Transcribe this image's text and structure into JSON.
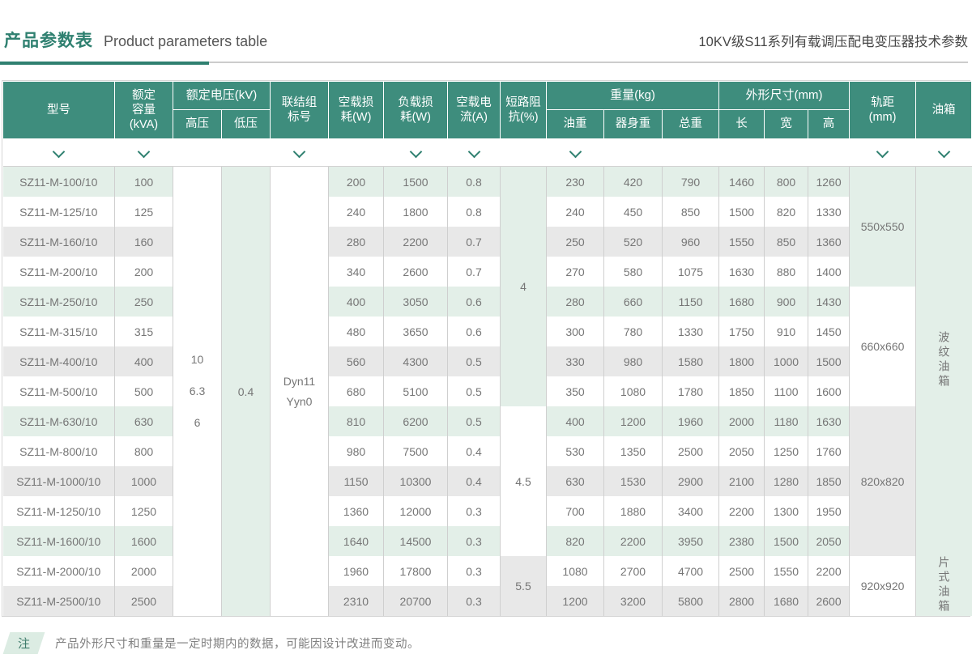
{
  "page": {
    "title_zh": "产品参数表",
    "title_en": "Product parameters table",
    "subtitle": "10KV级S11系列有载调压配电变压器技术参数",
    "note_label": "注",
    "note_text": "产品外形尺寸和重量是一定时期内的数据，可能因设计改进而变动。"
  },
  "colors": {
    "header_bg": "#3e8d7d",
    "accent": "#2f8070",
    "row_green": "#e3efe8",
    "row_gray": "#e8e8e8"
  },
  "icons": {
    "chevron_down": "chevron-down-icon"
  },
  "table": {
    "headers": {
      "model": "型号",
      "capacity": "额定\n容量\n(kVA)",
      "voltage_group": "额定电压(kV)",
      "hv": "高压",
      "lv": "低压",
      "vector": "联结组\n标号",
      "no_load_loss": "空载损\n耗(W)",
      "load_loss": "负载损\n耗(W)",
      "no_load_current": "空载电\n流(A)",
      "impedance": "短路阻\n抗(%)",
      "weight_group": "重量(kg)",
      "oil_weight": "油重",
      "body_weight": "器身重",
      "total_weight": "总重",
      "dim_group": "外形尺寸(mm)",
      "length": "长",
      "width": "宽",
      "height": "高",
      "gauge": "轨距\n(mm)",
      "tank": "油箱"
    },
    "chevron_columns": [
      0,
      1,
      4,
      6,
      7,
      9,
      15,
      16
    ],
    "merged": {
      "hv_values": "10\n6.3\n6",
      "lv_value": "0.4",
      "vector_values": "Dyn11\nYyn0",
      "impedance_groups": [
        {
          "value": "4",
          "rows": 8,
          "style": "green"
        },
        {
          "value": "4.5",
          "rows": 5,
          "style": "white"
        },
        {
          "value": "5.5",
          "rows": 2,
          "style": "gray"
        }
      ],
      "gauge_groups": [
        {
          "value": "550x550",
          "rows": 4,
          "style": "green"
        },
        {
          "value": "660x660",
          "rows": 4,
          "style": "white"
        },
        {
          "value": "820x820",
          "rows": 5,
          "style": "gray"
        },
        {
          "value": "920x920",
          "rows": 2,
          "style": "white"
        }
      ],
      "tank_groups": [
        {
          "value": "波纹油箱",
          "rows": 13
        },
        {
          "value": "片式油箱",
          "rows": 2
        }
      ]
    },
    "rows": [
      {
        "model": "SZ11-M-100/10",
        "kva": "100",
        "no_load_loss": "200",
        "load_loss": "1500",
        "current": "0.8",
        "oil": "230",
        "body": "420",
        "total": "790",
        "l": "1460",
        "w": "800",
        "h": "1260"
      },
      {
        "model": "SZ11-M-125/10",
        "kva": "125",
        "no_load_loss": "240",
        "load_loss": "1800",
        "current": "0.8",
        "oil": "240",
        "body": "450",
        "total": "850",
        "l": "1500",
        "w": "820",
        "h": "1330"
      },
      {
        "model": "SZ11-M-160/10",
        "kva": "160",
        "no_load_loss": "280",
        "load_loss": "2200",
        "current": "0.7",
        "oil": "250",
        "body": "520",
        "total": "960",
        "l": "1550",
        "w": "850",
        "h": "1360"
      },
      {
        "model": "SZ11-M-200/10",
        "kva": "200",
        "no_load_loss": "340",
        "load_loss": "2600",
        "current": "0.7",
        "oil": "270",
        "body": "580",
        "total": "1075",
        "l": "1630",
        "w": "880",
        "h": "1400"
      },
      {
        "model": "SZ11-M-250/10",
        "kva": "250",
        "no_load_loss": "400",
        "load_loss": "3050",
        "current": "0.6",
        "oil": "280",
        "body": "660",
        "total": "1150",
        "l": "1680",
        "w": "900",
        "h": "1430"
      },
      {
        "model": "SZ11-M-315/10",
        "kva": "315",
        "no_load_loss": "480",
        "load_loss": "3650",
        "current": "0.6",
        "oil": "300",
        "body": "780",
        "total": "1330",
        "l": "1750",
        "w": "910",
        "h": "1450"
      },
      {
        "model": "SZ11-M-400/10",
        "kva": "400",
        "no_load_loss": "560",
        "load_loss": "4300",
        "current": "0.5",
        "oil": "330",
        "body": "980",
        "total": "1580",
        "l": "1800",
        "w": "1000",
        "h": "1500"
      },
      {
        "model": "SZ11-M-500/10",
        "kva": "500",
        "no_load_loss": "680",
        "load_loss": "5100",
        "current": "0.5",
        "oil": "350",
        "body": "1080",
        "total": "1780",
        "l": "1850",
        "w": "1100",
        "h": "1600"
      },
      {
        "model": "SZ11-M-630/10",
        "kva": "630",
        "no_load_loss": "810",
        "load_loss": "6200",
        "current": "0.5",
        "oil": "400",
        "body": "1200",
        "total": "1960",
        "l": "2000",
        "w": "1180",
        "h": "1630"
      },
      {
        "model": "SZ11-M-800/10",
        "kva": "800",
        "no_load_loss": "980",
        "load_loss": "7500",
        "current": "0.4",
        "oil": "530",
        "body": "1350",
        "total": "2500",
        "l": "2050",
        "w": "1250",
        "h": "1760"
      },
      {
        "model": "SZ11-M-1000/10",
        "kva": "1000",
        "no_load_loss": "1150",
        "load_loss": "10300",
        "current": "0.4",
        "oil": "630",
        "body": "1530",
        "total": "2900",
        "l": "2100",
        "w": "1280",
        "h": "1850"
      },
      {
        "model": "SZ11-M-1250/10",
        "kva": "1250",
        "no_load_loss": "1360",
        "load_loss": "12000",
        "current": "0.3",
        "oil": "700",
        "body": "1880",
        "total": "3400",
        "l": "2200",
        "w": "1300",
        "h": "1950"
      },
      {
        "model": "SZ11-M-1600/10",
        "kva": "1600",
        "no_load_loss": "1640",
        "load_loss": "14500",
        "current": "0.3",
        "oil": "820",
        "body": "2200",
        "total": "3950",
        "l": "2380",
        "w": "1500",
        "h": "2050"
      },
      {
        "model": "SZ11-M-2000/10",
        "kva": "2000",
        "no_load_loss": "1960",
        "load_loss": "17800",
        "current": "0.3",
        "oil": "1080",
        "body": "2700",
        "total": "4700",
        "l": "2500",
        "w": "1550",
        "h": "2200"
      },
      {
        "model": "SZ11-M-2500/10",
        "kva": "2500",
        "no_load_loss": "2310",
        "load_loss": "20700",
        "current": "0.3",
        "oil": "1200",
        "body": "3200",
        "total": "5800",
        "l": "2800",
        "w": "1680",
        "h": "2600"
      }
    ]
  }
}
